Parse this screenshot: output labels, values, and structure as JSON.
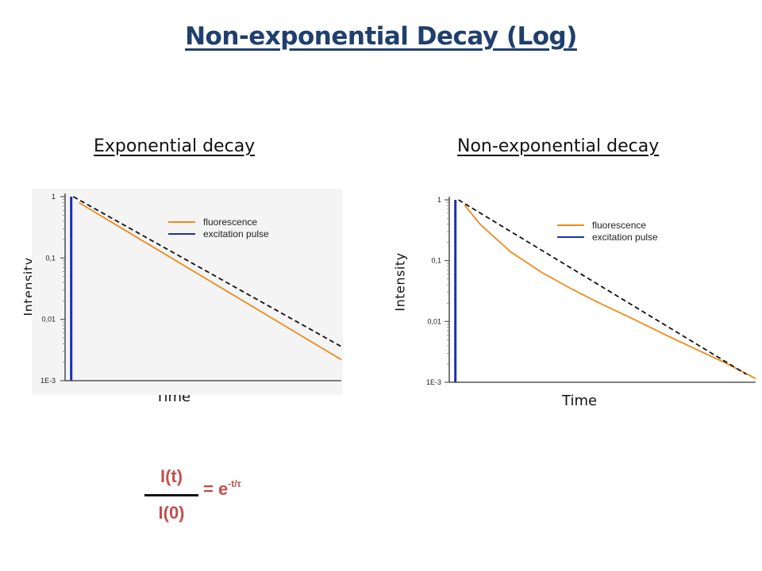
{
  "slide": {
    "title": "Non-exponential Decay (Log)"
  },
  "colors": {
    "title": "#1f3f6e",
    "fluorescence": "#f08a1c",
    "excitation_pulse": "#1a2fb5",
    "dashed_reference": "#111111",
    "formula": "#c0504d"
  },
  "formula": {
    "numerator": "I(t)",
    "denominator": "I(0)",
    "rhs_base": "= e",
    "rhs_exponent": "-t/τ"
  },
  "chart_data": [
    {
      "type": "line",
      "panel_title": "Exponential decay",
      "xlabel": "Time",
      "ylabel": "Intensity",
      "yscale": "log",
      "ylim": [
        0.001,
        1
      ],
      "xlim": [
        0,
        10
      ],
      "yticks": [
        1,
        0.1,
        0.01,
        0.001
      ],
      "ytick_labels": [
        "1",
        "0,1",
        "0,01",
        "1E-3"
      ],
      "legend": {
        "placement": "top-right",
        "entries": [
          "fluorescence",
          "excitation pulse"
        ]
      },
      "series": [
        {
          "name": "fluorescence",
          "x": [
            0.5,
            10
          ],
          "y": [
            0.8,
            0.0022
          ]
        },
        {
          "name": "excitation pulse",
          "x": [
            0.22,
            0.22
          ],
          "y": [
            0.001,
            1
          ]
        },
        {
          "name": "",
          "x": [
            0.3,
            10
          ],
          "y": [
            1.0,
            0.0036
          ]
        }
      ]
    },
    {
      "type": "line",
      "panel_title": "Non-exponential decay",
      "xlabel": "Time",
      "ylabel": "Intensity",
      "yscale": "log",
      "ylim": [
        0.001,
        1
      ],
      "xlim": [
        0,
        10
      ],
      "yticks": [
        1,
        0.1,
        0.01,
        0.001
      ],
      "ytick_labels": [
        "1",
        "0,1",
        "0,01",
        "1E-3"
      ],
      "legend": {
        "placement": "top-right",
        "entries": [
          "fluorescence",
          "excitation pulse"
        ]
      },
      "series": [
        {
          "name": "fluorescence",
          "x": [
            0.5,
            1.0,
            2.0,
            3.0,
            4.0,
            5.0,
            6.0,
            7.0,
            8.0,
            9.0,
            10.0
          ],
          "y": [
            0.82,
            0.4,
            0.14,
            0.065,
            0.034,
            0.019,
            0.011,
            0.0062,
            0.0036,
            0.0021,
            0.00115
          ]
        },
        {
          "name": "excitation pulse",
          "x": [
            0.2,
            0.2
          ],
          "y": [
            0.001,
            1
          ]
        },
        {
          "name": "",
          "x": [
            0.3,
            9.7
          ],
          "y": [
            1.0,
            0.00135
          ]
        }
      ]
    }
  ]
}
